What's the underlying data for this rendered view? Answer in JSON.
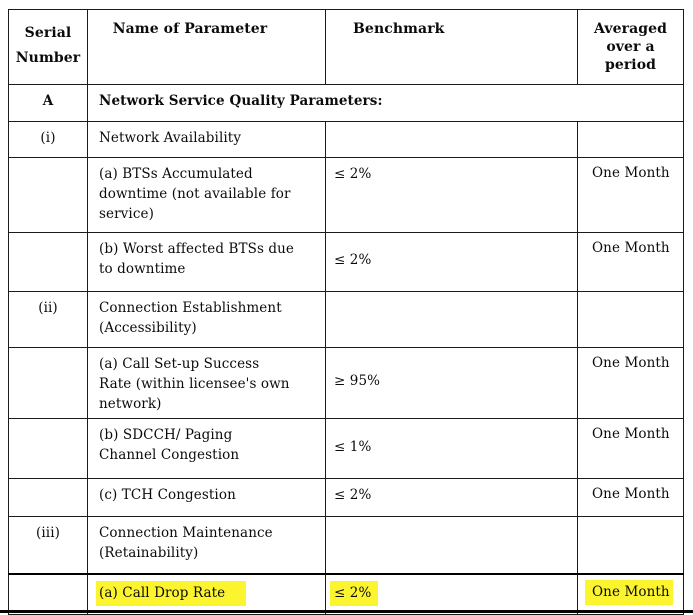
{
  "doc": {
    "kind": "scanned-table-page",
    "highlight_color": "#fbf42f",
    "ink_color": "#0b0b0b"
  },
  "table": {
    "headers": {
      "serial": "Serial\nNumber",
      "name": "Name of Parameter",
      "benchmark": "Benchmark",
      "period": "Averaged\nover a\nperiod"
    },
    "rows": [
      {
        "serial": "A",
        "name": "Network Service Quality Parameters:",
        "benchmark": "",
        "period": ""
      },
      {
        "serial": "(i)",
        "name": "Network Availability",
        "benchmark": "",
        "period": ""
      },
      {
        "serial": "",
        "name": "(a) BTSs Accumulated\ndowntime (not available for\nservice)",
        "benchmark": "≤ 2%",
        "period": "One Month"
      },
      {
        "serial": "",
        "name": "(b) Worst affected BTSs due\nto downtime",
        "benchmark": "≤ 2%",
        "period": "One Month"
      },
      {
        "serial": "(ii)",
        "name": "Connection Establishment\n(Accessibility)",
        "benchmark": "",
        "period": ""
      },
      {
        "serial": "",
        "name": "(a) Call Set-up Success\nRate (within licensee's own\nnetwork)",
        "benchmark": "≥ 95%",
        "period": "One Month"
      },
      {
        "serial": "",
        "name": "(b) SDCCH/ Paging\nChannel Congestion",
        "benchmark": "≤ 1%",
        "period": "One Month"
      },
      {
        "serial": "",
        "name": "(c) TCH Congestion",
        "benchmark": "≤ 2%",
        "period": "One Month"
      },
      {
        "serial": "(iii)",
        "name": "Connection Maintenance\n(Retainability)",
        "benchmark": "",
        "period": ""
      },
      {
        "serial": "",
        "name": "(a) Call Drop Rate",
        "benchmark": "≤ 2%",
        "period": "One Month",
        "highlighted": true
      }
    ]
  }
}
